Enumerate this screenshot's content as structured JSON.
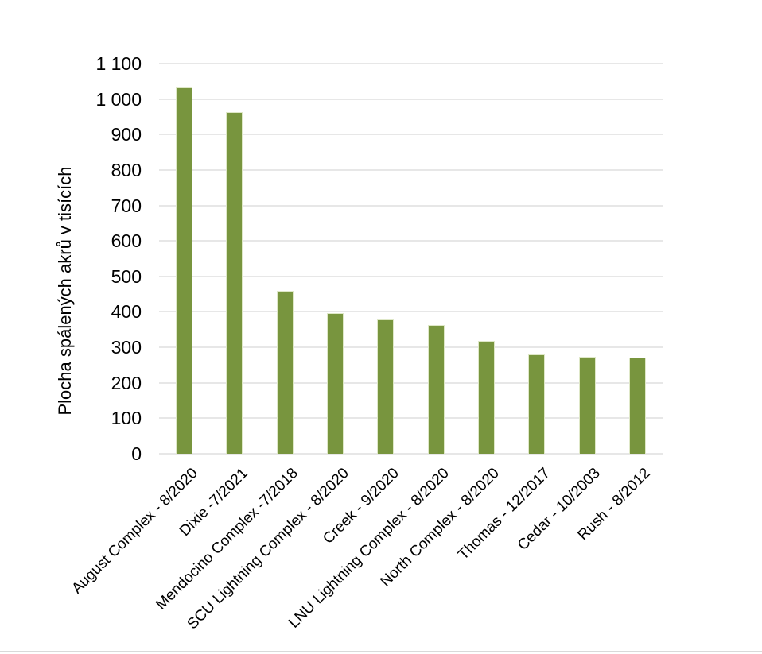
{
  "page": {
    "background_color": "#ffffff",
    "footer_divider_color": "#d9d9d9"
  },
  "chart_data": {
    "type": "bar",
    "title": "",
    "xlabel": "",
    "ylabel": "Plocha spálených akrů v tisících",
    "categories": [
      "August Complex - 8/2020",
      "Dixie -7/2021",
      "Mendocino Complex -7/2018",
      "SCU Lightning Complex - 8/2020",
      "Creek - 9/2020",
      "LNU Lightning Complex - 8/2020",
      "North Complex - 8/2020",
      "Thomas - 12/2017",
      "Cedar - 10/2003",
      "Rush - 8/2012"
    ],
    "values": [
      1032,
      963,
      459,
      396,
      379,
      363,
      318,
      281,
      273,
      271
    ],
    "ylim": [
      0,
      1100
    ],
    "ytick_step": 100,
    "ytick_labels": [
      "0",
      "100",
      "200",
      "300",
      "400",
      "500",
      "600",
      "700",
      "800",
      "900",
      "1 000",
      "1 100"
    ],
    "grid": true,
    "legend": false,
    "x_labels_rotation_deg": -45,
    "bar_color": "#78953e",
    "bar_edge_color": "#dfe8c8",
    "gridline_color": "#e7e7e7",
    "text_color": "#000000"
  }
}
